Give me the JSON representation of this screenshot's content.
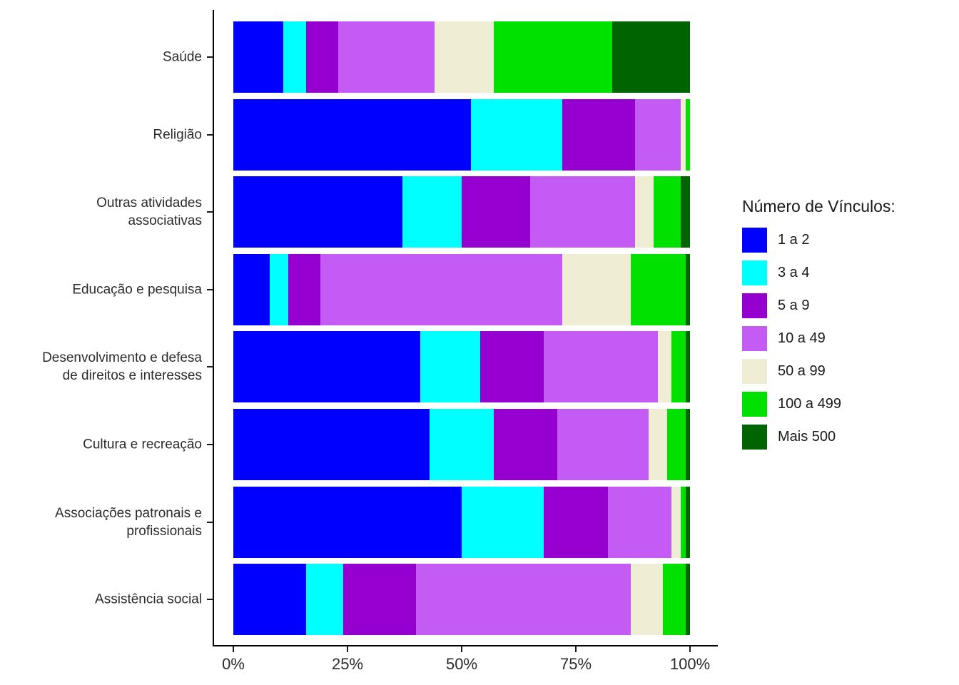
{
  "legend": {
    "title": "Número de Vínculos:",
    "items": [
      {
        "label": "1 a 2",
        "color": "#0000FF"
      },
      {
        "label": "3 a 4",
        "color": "#00FFFF"
      },
      {
        "label": "5 a 9",
        "color": "#9500D1"
      },
      {
        "label": "10 a 49",
        "color": "#C45BF5"
      },
      {
        "label": "50 a 99",
        "color": "#EFEDD3"
      },
      {
        "label": "100 a 499",
        "color": "#00E100"
      },
      {
        "label": "Mais 500",
        "color": "#006400"
      }
    ]
  },
  "chart_data": {
    "type": "bar",
    "orientation": "horizontal",
    "stacked": true,
    "unit": "%",
    "title": "",
    "xlabel": "",
    "ylabel": "",
    "categories": [
      "Saúde",
      "Religião",
      "Outras atividades associativas",
      "Educação e pesquisa",
      "Desenvolvimento e defesa de direitos e interesses",
      "Cultura e recreação",
      "Associações patronais e profissionais",
      "Assistência social"
    ],
    "series": [
      {
        "name": "1 a 2",
        "color": "#0000FF",
        "values": [
          11,
          52,
          37,
          8,
          41,
          43,
          50,
          16
        ]
      },
      {
        "name": "3 a 4",
        "color": "#00FFFF",
        "values": [
          5,
          20,
          13,
          4,
          13,
          14,
          18,
          8
        ]
      },
      {
        "name": "5 a 9",
        "color": "#9500D1",
        "values": [
          7,
          16,
          15,
          7,
          14,
          14,
          14,
          16
        ]
      },
      {
        "name": "10 a 49",
        "color": "#C45BF5",
        "values": [
          21,
          10,
          23,
          53,
          25,
          20,
          14,
          47
        ]
      },
      {
        "name": "50 a 99",
        "color": "#EFEDD3",
        "values": [
          13,
          1,
          4,
          15,
          3,
          4,
          2,
          7
        ]
      },
      {
        "name": "100 a 499",
        "color": "#00E100",
        "values": [
          26,
          1,
          6,
          12,
          3,
          4,
          1,
          5
        ]
      },
      {
        "name": "Mais 500",
        "color": "#006400",
        "values": [
          17,
          0,
          2,
          1,
          1,
          1,
          1,
          1
        ]
      }
    ],
    "x_axis": {
      "ticks": [
        "0%",
        "25%",
        "50%",
        "75%",
        "100%"
      ],
      "range": [
        0,
        100
      ],
      "grid": false
    },
    "legend_position": "right"
  }
}
